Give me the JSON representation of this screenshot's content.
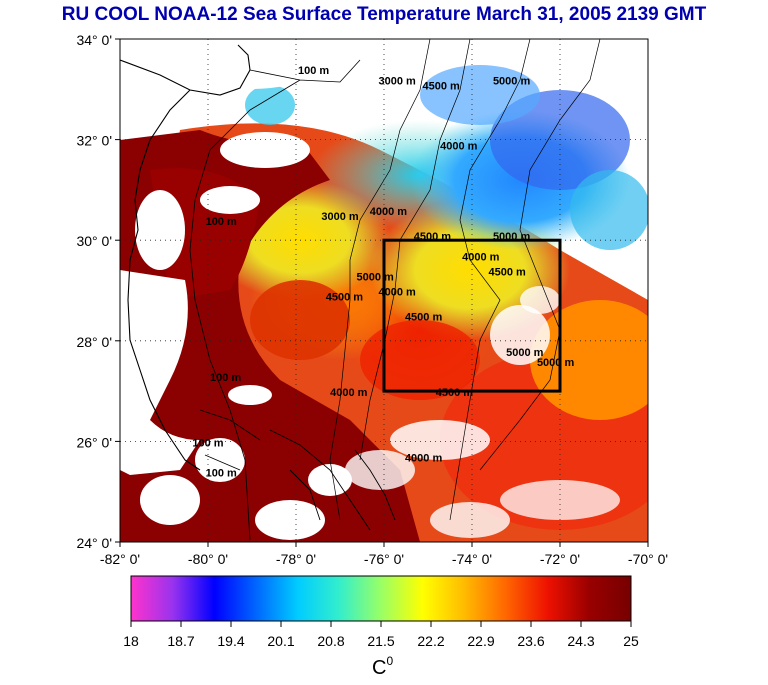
{
  "title": "RU COOL  NOAA-12 Sea Surface Temperature March 31, 2005 2139 GMT",
  "map": {
    "lon_range": [
      -82,
      -70
    ],
    "lat_range": [
      24,
      34
    ],
    "lon_ticks": [
      {
        "value": -82,
        "label": "-82° 0'"
      },
      {
        "value": -80,
        "label": "-80° 0'"
      },
      {
        "value": -78,
        "label": "-78° 0'"
      },
      {
        "value": -76,
        "label": "-76° 0'"
      },
      {
        "value": -74,
        "label": "-74° 0'"
      },
      {
        "value": -72,
        "label": "-72° 0'"
      },
      {
        "value": -70,
        "label": "-70° 0'"
      }
    ],
    "lat_ticks": [
      {
        "value": 24,
        "label": "24° 0'"
      },
      {
        "value": 26,
        "label": "26° 0'"
      },
      {
        "value": 28,
        "label": "28° 0'"
      },
      {
        "value": 30,
        "label": "30° 0'"
      },
      {
        "value": 32,
        "label": "32° 0'"
      },
      {
        "value": 34,
        "label": "34° 0'"
      }
    ],
    "grid": "dotted",
    "study_box": {
      "lon_min": -76,
      "lon_max": -72,
      "lat_min": 27,
      "lat_max": 30
    },
    "contour_labels": [
      {
        "text": "100 m",
        "lon": -77.6,
        "lat": 33.3
      },
      {
        "text": "3000 m",
        "lon": -75.7,
        "lat": 33.1
      },
      {
        "text": "4500 m",
        "lon": -74.7,
        "lat": 33.0
      },
      {
        "text": "5000 m",
        "lon": -73.1,
        "lat": 33.1
      },
      {
        "text": "4000 m",
        "lon": -74.3,
        "lat": 31.8
      },
      {
        "text": "100 m",
        "lon": -79.7,
        "lat": 30.3
      },
      {
        "text": "3000 m",
        "lon": -77.0,
        "lat": 30.4
      },
      {
        "text": "4000 m",
        "lon": -75.9,
        "lat": 30.5
      },
      {
        "text": "4500 m",
        "lon": -74.9,
        "lat": 30.0
      },
      {
        "text": "5000 m",
        "lon": -73.1,
        "lat": 30.0
      },
      {
        "text": "4000 m",
        "lon": -73.8,
        "lat": 29.6
      },
      {
        "text": "4500 m",
        "lon": -73.2,
        "lat": 29.3
      },
      {
        "text": "5000 m",
        "lon": -76.2,
        "lat": 29.2
      },
      {
        "text": "4000 m",
        "lon": -75.7,
        "lat": 28.9
      },
      {
        "text": "4500 m",
        "lon": -76.9,
        "lat": 28.8
      },
      {
        "text": "4500 m",
        "lon": -75.1,
        "lat": 28.4
      },
      {
        "text": "5000 m",
        "lon": -72.8,
        "lat": 27.7
      },
      {
        "text": "5000 m",
        "lon": -72.1,
        "lat": 27.5
      },
      {
        "text": "100 m",
        "lon": -79.6,
        "lat": 27.2
      },
      {
        "text": "4000 m",
        "lon": -76.8,
        "lat": 26.9
      },
      {
        "text": "4500 m",
        "lon": -74.4,
        "lat": 26.9
      },
      {
        "text": "100 m",
        "lon": -80.0,
        "lat": 25.9
      },
      {
        "text": "4000 m",
        "lon": -75.1,
        "lat": 25.6
      },
      {
        "text": "100 m",
        "lon": -79.7,
        "lat": 25.3
      }
    ]
  },
  "colorbar": {
    "min": 18,
    "max": 25,
    "tick_labels": [
      "18",
      "18.7",
      "19.4",
      "20.1",
      "20.8",
      "21.5",
      "22.2",
      "22.9",
      "23.6",
      "24.3",
      "25"
    ],
    "unit": "C",
    "unit_sup": "0",
    "stops": [
      "#ff33cc",
      "#9933ee",
      "#0000ff",
      "#0066ff",
      "#00ccff",
      "#33eecc",
      "#99ff66",
      "#ffff00",
      "#ffbb00",
      "#ff6600",
      "#ee1100",
      "#990000",
      "#770000"
    ]
  }
}
